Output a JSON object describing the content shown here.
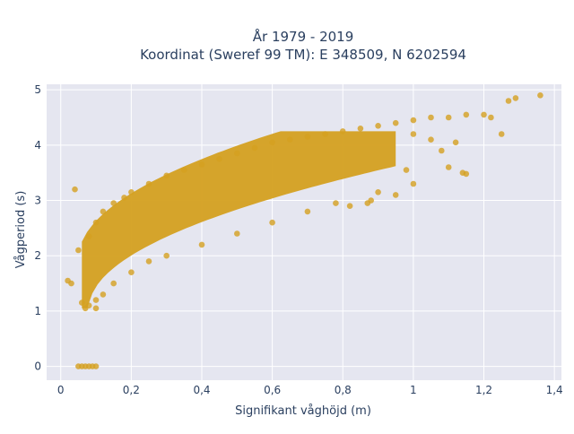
{
  "chart_data": {
    "type": "scatter",
    "title_lines": [
      "År 1979 - 2019",
      "Koordinat (Sweref 99 TM): E 348509, N 6202594"
    ],
    "xlabel": "Signifikant våghöjd (m)",
    "ylabel": "Vågperiod (s)",
    "xlim": [
      -0.04,
      1.42
    ],
    "ylim": [
      -0.25,
      5.1
    ],
    "x_ticks": [
      0,
      0.2,
      0.4,
      0.6,
      0.8,
      1,
      1.2,
      1.4
    ],
    "x_tick_labels": [
      "0",
      "0,2",
      "0,4",
      "0,6",
      "0,8",
      "1",
      "1,2",
      "1,4"
    ],
    "y_ticks": [
      0,
      1,
      2,
      3,
      4,
      5
    ],
    "y_tick_labels": [
      "0",
      "1",
      "2",
      "3",
      "4",
      "5"
    ],
    "grid": true,
    "legend": "none",
    "marker_color": "#d4a020",
    "plot_background": "#e5e6f0",
    "points": [
      [
        0.05,
        0
      ],
      [
        0.06,
        0
      ],
      [
        0.07,
        0
      ],
      [
        0.08,
        0
      ],
      [
        0.09,
        0
      ],
      [
        0.1,
        0
      ],
      [
        0.02,
        1.55
      ],
      [
        0.03,
        1.5
      ],
      [
        0.04,
        3.2
      ],
      [
        0.05,
        2.1
      ],
      [
        0.06,
        1.15
      ],
      [
        0.07,
        1.05
      ],
      [
        0.08,
        1.1
      ],
      [
        0.1,
        1.05
      ],
      [
        0.08,
        2.35
      ],
      [
        0.1,
        2.6
      ],
      [
        0.12,
        2.8
      ],
      [
        0.15,
        2.95
      ],
      [
        0.18,
        3.05
      ],
      [
        0.2,
        3.15
      ],
      [
        0.25,
        3.3
      ],
      [
        0.3,
        3.45
      ],
      [
        0.35,
        3.55
      ],
      [
        0.4,
        3.65
      ],
      [
        0.45,
        3.75
      ],
      [
        0.5,
        3.85
      ],
      [
        0.55,
        3.95
      ],
      [
        0.6,
        4.05
      ],
      [
        0.65,
        4.1
      ],
      [
        0.7,
        4.15
      ],
      [
        0.75,
        4.2
      ],
      [
        0.8,
        4.25
      ],
      [
        0.85,
        4.3
      ],
      [
        0.9,
        4.35
      ],
      [
        0.95,
        4.4
      ],
      [
        1.0,
        4.45
      ],
      [
        1.05,
        4.5
      ],
      [
        1.1,
        4.5
      ],
      [
        1.15,
        4.55
      ],
      [
        1.2,
        4.55
      ],
      [
        1.22,
        4.5
      ],
      [
        1.25,
        4.2
      ],
      [
        1.27,
        4.8
      ],
      [
        1.29,
        4.85
      ],
      [
        1.36,
        4.9
      ],
      [
        1.0,
        4.2
      ],
      [
        1.05,
        4.1
      ],
      [
        1.08,
        3.9
      ],
      [
        1.12,
        4.05
      ],
      [
        1.14,
        3.5
      ],
      [
        1.15,
        3.48
      ],
      [
        1.1,
        3.6
      ],
      [
        0.98,
        3.55
      ],
      [
        1.0,
        3.3
      ],
      [
        0.95,
        3.1
      ],
      [
        0.9,
        3.15
      ],
      [
        0.88,
        3.0
      ],
      [
        0.87,
        2.95
      ],
      [
        0.82,
        2.9
      ],
      [
        0.78,
        2.95
      ],
      [
        0.7,
        2.8
      ],
      [
        0.6,
        2.6
      ],
      [
        0.5,
        2.4
      ],
      [
        0.4,
        2.2
      ],
      [
        0.3,
        2.0
      ],
      [
        0.25,
        1.9
      ],
      [
        0.2,
        1.7
      ],
      [
        0.15,
        1.5
      ],
      [
        0.12,
        1.3
      ],
      [
        0.1,
        1.2
      ]
    ]
  }
}
